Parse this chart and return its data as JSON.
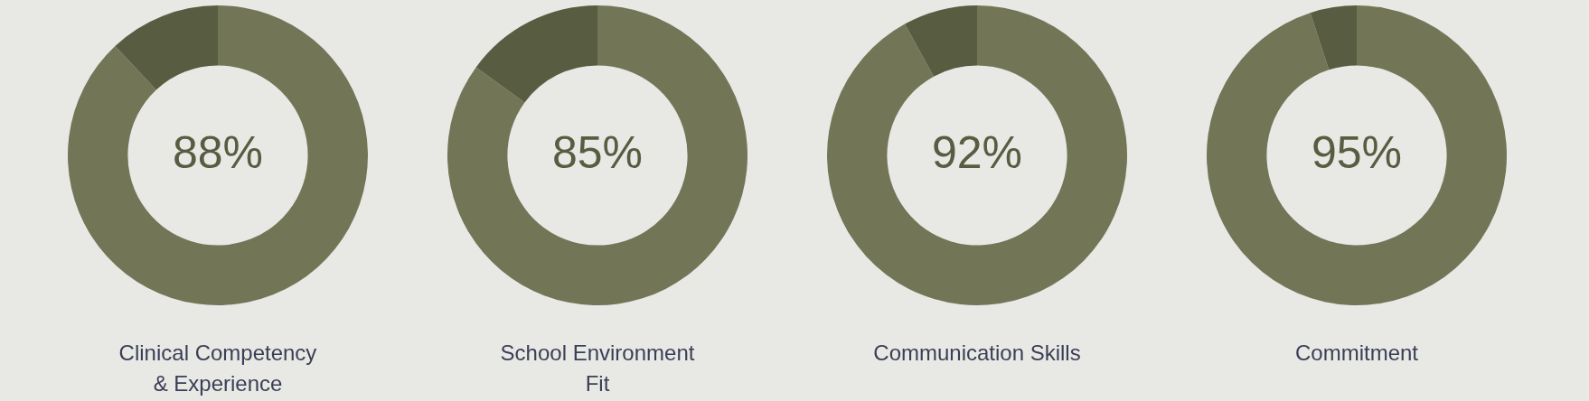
{
  "chart_data": [
    {
      "type": "donut",
      "title": "Clinical Competency\n& Experience",
      "categories": [
        null,
        null
      ],
      "values": [
        88,
        12
      ],
      "colors": [
        "#727556",
        "#585c40"
      ],
      "value_labels": [
        "88%",
        null
      ]
    },
    {
      "type": "donut",
      "title": "School Environment\nFit",
      "categories": [
        null,
        null
      ],
      "values": [
        85,
        15
      ],
      "colors": [
        "#727556",
        "#585c40"
      ],
      "value_labels": [
        "85%",
        null
      ]
    },
    {
      "type": "donut",
      "title": "Communication Skills",
      "categories": [
        null,
        null
      ],
      "values": [
        92,
        8
      ],
      "colors": [
        "#727556",
        "#585c40"
      ],
      "value_labels": [
        "92%",
        null
      ]
    },
    {
      "type": "donut",
      "title": "Commitment",
      "categories": [
        null,
        null
      ],
      "values": [
        95,
        5
      ],
      "colors": [
        "#727556",
        "#585c40"
      ],
      "value_labels": [
        "95%",
        null
      ]
    }
  ]
}
